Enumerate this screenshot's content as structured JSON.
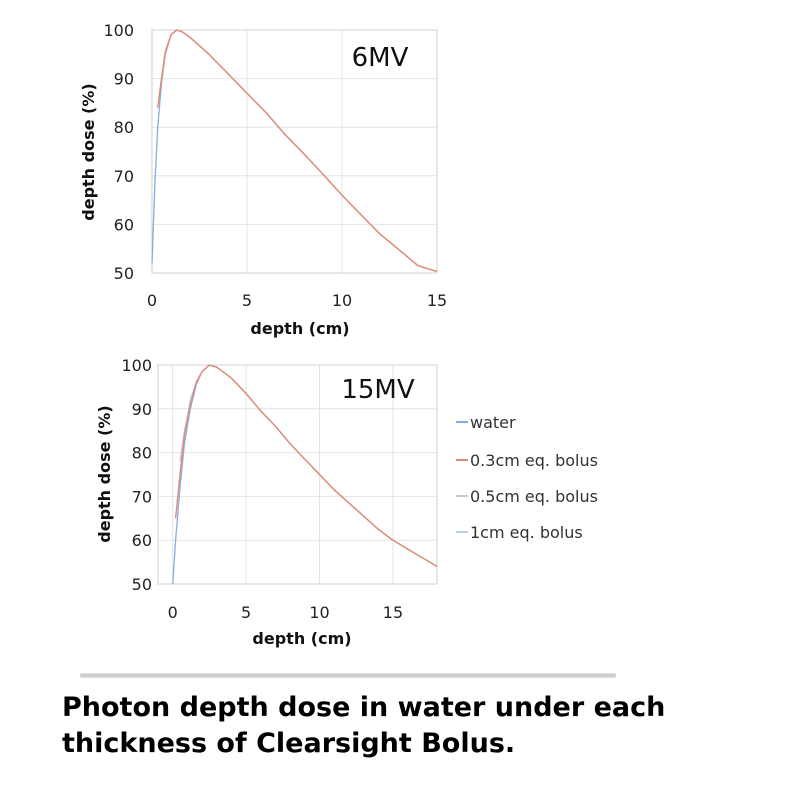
{
  "caption": {
    "line1": "Photon depth dose in water under each",
    "line2": "thickness of Clearsight Bolus."
  },
  "colors": {
    "water": "#7fb0e0",
    "bolus_0_3": "#e48a72",
    "bolus_0_5": "#c9c9c9",
    "bolus_1": "#b9cfe6"
  },
  "legend": [
    "water",
    "0.3cm eq. bolus",
    "0.5cm eq. bolus",
    "1cm eq. bolus"
  ],
  "chart_data": [
    {
      "type": "line",
      "title": "6MV",
      "xlabel": "depth (cm)",
      "ylabel": "depth dose (%)",
      "xlim": [
        0,
        15
      ],
      "ylim": [
        50,
        100
      ],
      "xticks": [
        0,
        5,
        10,
        15
      ],
      "yticks": [
        50,
        60,
        70,
        80,
        90,
        100
      ],
      "grid": true,
      "series": [
        {
          "name": "water",
          "x": [
            0,
            0.15,
            0.3,
            0.5,
            0.7,
            1.0,
            1.3,
            1.6,
            2,
            3,
            4,
            5,
            6,
            7,
            8,
            9,
            10,
            11,
            12,
            13,
            14,
            15
          ],
          "y": [
            52,
            68,
            80,
            89,
            95,
            99,
            100,
            99.6,
            98.5,
            95,
            91,
            87,
            83,
            78.5,
            74.5,
            70.3,
            66,
            62,
            58,
            54.8,
            51.5,
            50.3
          ]
        },
        {
          "name": "0.3cm eq. bolus",
          "x": [
            0.3,
            0.5,
            0.7,
            1.0,
            1.3,
            1.6,
            2,
            3,
            4,
            5,
            6,
            7,
            8,
            9,
            10,
            11,
            12,
            13,
            14,
            15
          ],
          "y": [
            84,
            90,
            95.5,
            99,
            100,
            99.6,
            98.5,
            95,
            91,
            87,
            83,
            78.5,
            74.5,
            70.3,
            66,
            62,
            58,
            54.8,
            51.5,
            50.3
          ]
        },
        {
          "name": "0.5cm eq. bolus",
          "x": [
            0.5,
            0.7,
            1.0,
            1.3,
            1.6,
            2,
            3,
            4,
            5,
            6,
            7,
            8,
            9,
            10,
            11,
            12,
            13,
            14,
            15
          ],
          "y": [
            90,
            95.5,
            99,
            100,
            99.6,
            98.5,
            95,
            91,
            87,
            83,
            78.5,
            74.5,
            70.3,
            66,
            62,
            58,
            54.8,
            51.5,
            50.3
          ]
        },
        {
          "name": "1cm eq. bolus",
          "x": [
            1.0,
            1.3,
            1.6,
            2,
            3,
            4,
            5,
            6,
            7,
            8,
            9,
            10,
            11,
            12,
            13,
            14,
            15
          ],
          "y": [
            99,
            100,
            99.6,
            98.5,
            95,
            91,
            87,
            83,
            78.5,
            74.5,
            70.3,
            66,
            62,
            58,
            54.8,
            51.5,
            50.3
          ]
        }
      ]
    },
    {
      "type": "line",
      "title": "15MV",
      "xlabel": "depth (cm)",
      "ylabel": "depth dose (%)",
      "xlim": [
        -1,
        18
      ],
      "ylim": [
        50,
        100
      ],
      "xticks": [
        0,
        5,
        10,
        15
      ],
      "yticks": [
        50,
        60,
        70,
        80,
        90,
        100
      ],
      "grid": true,
      "series": [
        {
          "name": "water",
          "x": [
            0,
            0.2,
            0.5,
            0.8,
            1.2,
            1.6,
            2.0,
            2.5,
            3,
            4,
            5,
            6,
            7,
            8,
            9,
            10,
            11,
            12,
            13,
            14,
            15,
            16,
            17,
            18
          ],
          "y": [
            50,
            60,
            72,
            82,
            90,
            95.5,
            98.5,
            100,
            99.5,
            97,
            93.5,
            89.5,
            86,
            82,
            78.5,
            75,
            71.5,
            68.5,
            65.5,
            62.5,
            60,
            58,
            56,
            54
          ]
        },
        {
          "name": "0.3cm eq. bolus",
          "x": [
            0.2,
            0.5,
            0.8,
            1.2,
            1.6,
            2.0,
            2.5,
            3,
            4,
            5,
            6,
            7,
            8,
            9,
            10,
            11,
            12,
            13,
            14,
            15,
            16,
            17,
            18
          ],
          "y": [
            65,
            75,
            84,
            91,
            96,
            98.5,
            100,
            99.5,
            97,
            93.5,
            89.5,
            86,
            82,
            78.5,
            75,
            71.5,
            68.5,
            65.5,
            62.5,
            60,
            58,
            56,
            54
          ]
        },
        {
          "name": "0.5cm eq. bolus",
          "x": [
            0.5,
            0.8,
            1.2,
            1.6,
            2.0,
            2.5,
            3,
            4,
            5,
            6,
            7,
            8,
            9,
            10,
            11,
            12,
            13,
            14,
            15,
            16,
            17,
            18
          ],
          "y": [
            78,
            85,
            91.5,
            96,
            98.5,
            100,
            99.5,
            97,
            93.5,
            89.5,
            86,
            82,
            78.5,
            75,
            71.5,
            68.5,
            65.5,
            62.5,
            60,
            58,
            56,
            54
          ]
        },
        {
          "name": "1cm eq. bolus",
          "x": [
            1.0,
            1.2,
            1.6,
            2.0,
            2.5,
            3,
            4,
            5,
            6,
            7,
            8,
            9,
            10,
            11,
            12,
            13,
            14,
            15,
            16,
            17,
            18
          ],
          "y": [
            88,
            92,
            96,
            98.5,
            100,
            99.5,
            97,
            93.5,
            89.5,
            86,
            82,
            78.5,
            75,
            71.5,
            68.5,
            65.5,
            62.5,
            60,
            58,
            56,
            54
          ]
        }
      ]
    }
  ]
}
